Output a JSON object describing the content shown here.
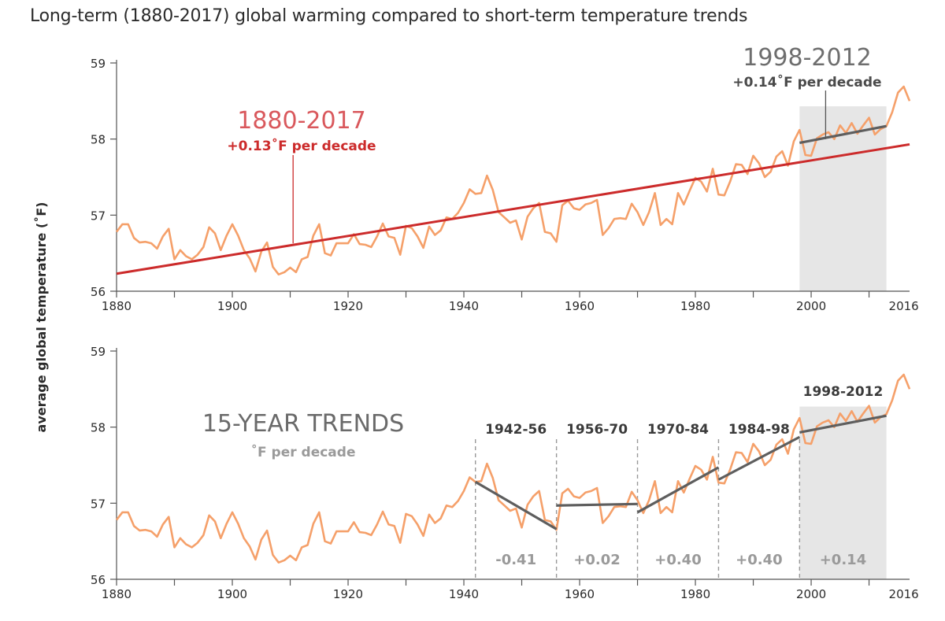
{
  "title": "Long-term (1880-2017) global warming compared to short-term temperature trends",
  "chart_data": {
    "type": "line",
    "ylabel": "average global temperature (˚F)",
    "x_ticks": [
      1880,
      1900,
      1920,
      1940,
      1960,
      1980,
      2000,
      2016
    ],
    "y_ticks": [
      56,
      57,
      58,
      59
    ],
    "xlim": [
      1880,
      2017
    ],
    "ylim": [
      56,
      59
    ],
    "colors": {
      "series": "#f5a06a",
      "longterm_trend": "#cc2b2b",
      "trend_segment": "#5e5e5e",
      "shade": "#e6e6e6",
      "dashed_divider": "#999999"
    },
    "series": [
      {
        "x_start": 1880,
        "values": [
          56.78,
          56.88,
          56.88,
          56.7,
          56.64,
          56.65,
          56.63,
          56.56,
          56.72,
          56.82,
          56.42,
          56.54,
          56.46,
          56.42,
          56.48,
          56.58,
          56.84,
          56.76,
          56.54,
          56.73,
          56.88,
          56.73,
          56.54,
          56.43,
          56.26,
          56.52,
          56.64,
          56.32,
          56.22,
          56.25,
          56.31,
          56.25,
          56.42,
          56.45,
          56.73,
          56.88,
          56.5,
          56.47,
          56.63,
          56.63,
          56.63,
          56.75,
          56.62,
          56.61,
          56.58,
          56.72,
          56.89,
          56.72,
          56.7,
          56.48,
          56.86,
          56.83,
          56.72,
          56.57,
          56.85,
          56.74,
          56.8,
          56.97,
          56.95,
          57.03,
          57.16,
          57.34,
          57.28,
          57.29,
          57.52,
          57.33,
          57.04,
          56.97,
          56.9,
          56.93,
          56.68,
          56.98,
          57.09,
          57.16,
          56.78,
          56.76,
          56.65,
          57.13,
          57.19,
          57.09,
          57.07,
          57.14,
          57.16,
          57.2,
          56.74,
          56.83,
          56.95,
          56.96,
          56.95,
          57.15,
          57.04,
          56.87,
          57.04,
          57.29,
          56.87,
          56.95,
          56.88,
          57.29,
          57.14,
          57.32,
          57.49,
          57.44,
          57.31,
          57.61,
          57.27,
          57.26,
          57.44,
          57.67,
          57.66,
          57.54,
          57.78,
          57.68,
          57.5,
          57.57,
          57.77,
          57.84,
          57.65,
          57.97,
          58.12,
          57.79,
          57.78,
          58.01,
          58.06,
          58.09,
          58.0,
          58.18,
          58.08,
          58.21,
          58.07,
          58.18,
          58.28,
          58.06,
          58.13,
          58.17,
          58.35,
          58.61,
          58.69,
          58.5
        ]
      }
    ],
    "long_term_trend": {
      "x": [
        1880,
        2017
      ],
      "y": [
        56.23,
        57.93
      ]
    },
    "top_panel": {
      "shaded_period": [
        1998,
        2013
      ],
      "trend_segment": {
        "x": [
          1998,
          2013
        ],
        "y": [
          57.95,
          58.17
        ]
      },
      "annotations": {
        "longterm_period": "1880-2017",
        "longterm_rate": "+0.13˚F per decade",
        "recent_period": "1998-2012",
        "recent_rate": "+0.14˚F per decade"
      }
    },
    "bottom_panel": {
      "heading": "15-YEAR TRENDS",
      "subheading": "˚F per decade",
      "shaded_period": [
        1998,
        2013
      ],
      "segments": [
        {
          "label": "1942-56",
          "rate": "-0.41",
          "x": [
            1942,
            1956
          ],
          "y": [
            57.28,
            56.66
          ]
        },
        {
          "label": "1956-70",
          "rate": "+0.02",
          "x": [
            1956,
            1970
          ],
          "y": [
            56.97,
            56.99
          ]
        },
        {
          "label": "1970-84",
          "rate": "+0.40",
          "x": [
            1970,
            1984
          ],
          "y": [
            56.88,
            57.47
          ]
        },
        {
          "label": "1984-98",
          "rate": "+0.40",
          "x": [
            1984,
            1998
          ],
          "y": [
            57.31,
            57.87
          ]
        },
        {
          "label": "1998-2012",
          "rate": "+0.14",
          "x": [
            1998,
            2013
          ],
          "y": [
            57.93,
            58.15
          ]
        }
      ]
    }
  }
}
